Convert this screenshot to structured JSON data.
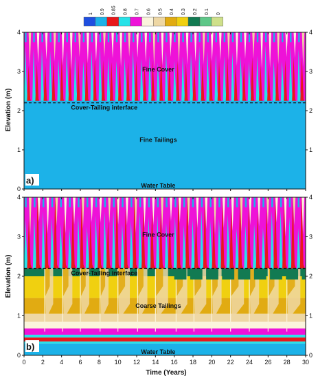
{
  "chart_data": [
    {
      "type": "heatmap",
      "panel_label": "a)",
      "xlabel": "",
      "ylabel": "Elevation (m)",
      "xlim": [
        0,
        30
      ],
      "ylim": [
        0,
        4
      ],
      "x_ticks": [
        "0",
        "2",
        "4",
        "6",
        "8",
        "10",
        "12",
        "14",
        "16",
        "18",
        "20",
        "22",
        "24",
        "26",
        "28",
        "30"
      ],
      "y_ticks": [
        "0",
        "1",
        "2",
        "3",
        "4"
      ],
      "y_ticks_right": [
        "1",
        "2",
        "3",
        "4"
      ],
      "interface_elevation": 2.2,
      "annotations": {
        "cover": "Fine Cover",
        "interface": "Cover-Tailing interface",
        "tailing": "Fine Tailings",
        "water_table": "Water Table"
      },
      "layers": [
        {
          "name": "Fine Tailings",
          "from": 0.0,
          "to": 2.2,
          "saturation": 0.9
        },
        {
          "name": "Fine Cover",
          "from": 2.2,
          "to": 4.0,
          "saturation_range": [
            0.5,
            0.9
          ]
        }
      ]
    },
    {
      "type": "heatmap",
      "panel_label": "b)",
      "xlabel": "Time (Years)",
      "ylabel": "Elevation (m)",
      "xlim": [
        0,
        30
      ],
      "ylim": [
        0,
        4
      ],
      "x_ticks": [
        "0",
        "2",
        "4",
        "6",
        "8",
        "10",
        "12",
        "14",
        "16",
        "18",
        "20",
        "22",
        "24",
        "26",
        "28",
        "30"
      ],
      "y_ticks": [
        "0",
        "1",
        "2",
        "3",
        "4"
      ],
      "y_ticks_right": [
        "0",
        "1",
        "2",
        "3",
        "4"
      ],
      "interface_elevation": 2.2,
      "annotations": {
        "cover": "Fine Cover",
        "interface": "Cover-Tailing interface",
        "tailing": "Coarse Tailings",
        "water_table": "Water Table"
      },
      "layers": [
        {
          "name": "Coarse Tailings",
          "from": 0.0,
          "to": 2.2,
          "saturation_range": [
            0.2,
            0.9
          ]
        },
        {
          "name": "Fine Cover",
          "from": 2.2,
          "to": 4.0,
          "saturation_range": [
            0.5,
            0.9
          ]
        }
      ]
    }
  ],
  "legend": {
    "title": "",
    "placement": "top",
    "entries": [
      {
        "label": "1",
        "color": "#1f4fe0"
      },
      {
        "label": "0.9",
        "color": "#1cb2e8"
      },
      {
        "label": "0.85",
        "color": "#e8181a"
      },
      {
        "label": "0.8",
        "color": "#27e2e8"
      },
      {
        "label": "0.7",
        "color": "#ee12d8"
      },
      {
        "label": "0.6",
        "color": "#fbf4dc"
      },
      {
        "label": "0.5",
        "color": "#eed7a4"
      },
      {
        "label": "0.4",
        "color": "#e1ab12"
      },
      {
        "label": "0.3",
        "color": "#f0d010"
      },
      {
        "label": "0.2",
        "color": "#127a52"
      },
      {
        "label": "0.1",
        "color": "#5ec788"
      },
      {
        "label": "0",
        "color": "#cfe08a"
      }
    ]
  }
}
